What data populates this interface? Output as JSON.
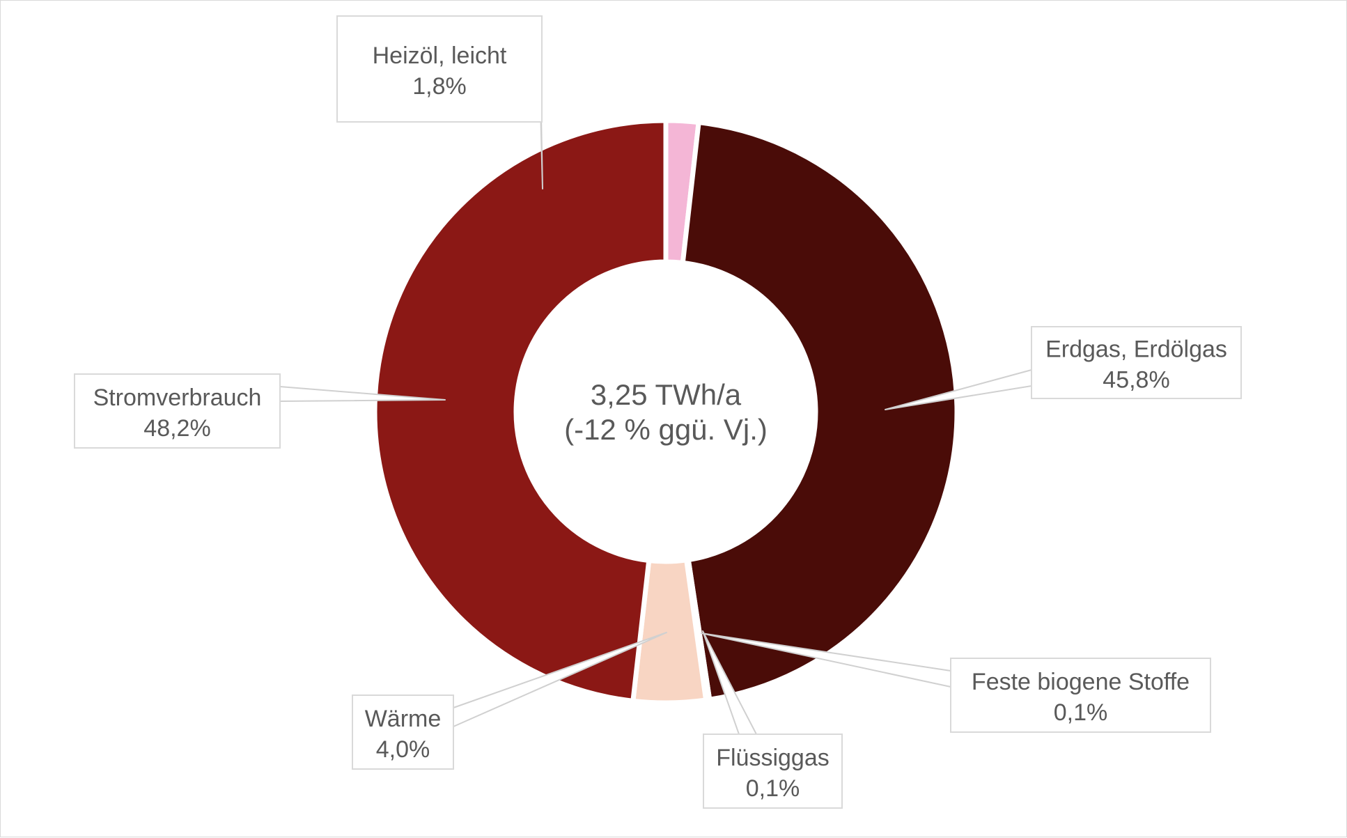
{
  "chart_data": {
    "type": "pie",
    "variant": "donut",
    "center_label": {
      "line1": "3,25 TWh/a",
      "line2": "(-12 % ggü. Vj.)"
    },
    "slices": [
      {
        "name": "Heizöl, leicht",
        "value": 1.8,
        "value_label": "1,8%",
        "color": "#f4b6d6"
      },
      {
        "name": "Erdgas, Erdölgas",
        "value": 45.8,
        "value_label": "45,8%",
        "color": "#4a0c08"
      },
      {
        "name": "Feste biogene Stoffe",
        "value": 0.1,
        "value_label": "0,1%",
        "color": "#5a1510"
      },
      {
        "name": "Flüssiggas",
        "value": 0.1,
        "value_label": "0,1%",
        "color": "#a62a1e"
      },
      {
        "name": "Wärme",
        "value": 4.0,
        "value_label": "4,0%",
        "color": "#f8d5c3"
      },
      {
        "name": "Stromverbrauch",
        "value": 48.2,
        "value_label": "48,2%",
        "color": "#8b1815"
      }
    ],
    "legend": "none",
    "data_labels": "callouts"
  }
}
